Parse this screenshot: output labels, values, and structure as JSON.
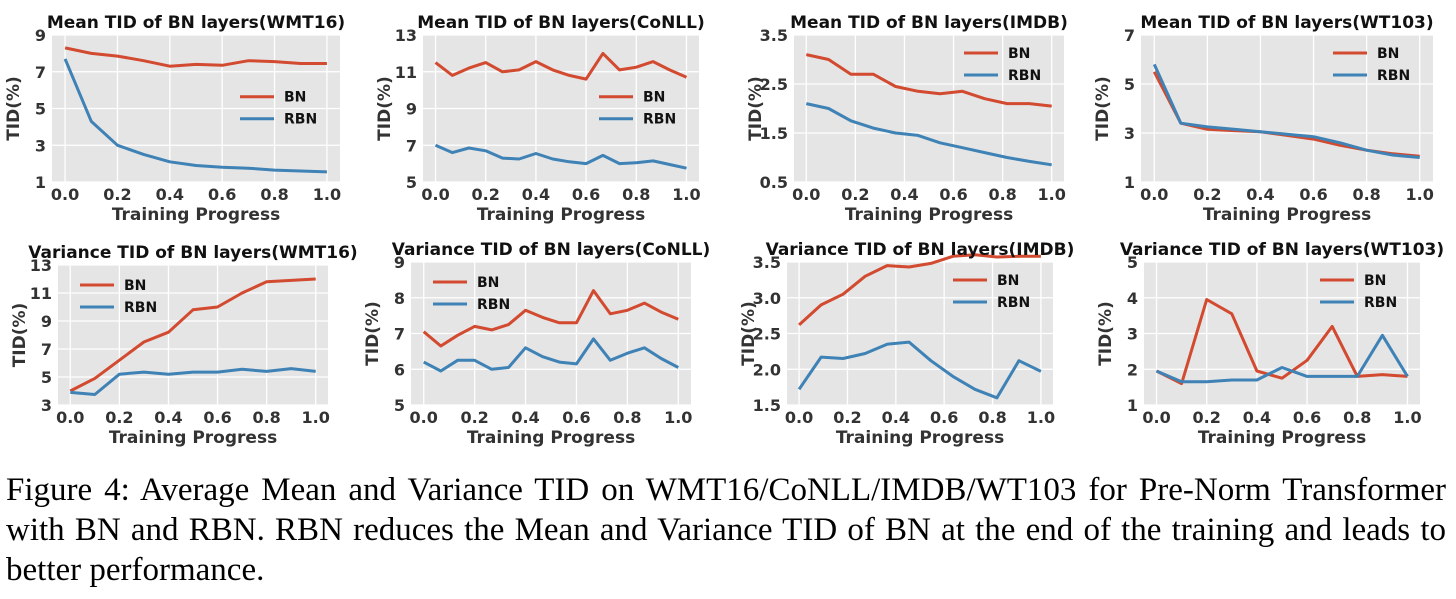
{
  "colors": {
    "BN": "#d24a2f",
    "RBN": "#3f82b5",
    "panel_bg": "#e5e5e5",
    "grid": "#ffffff"
  },
  "caption": "Figure 4: Average Mean and Variance TID on WMT16/CoNLL/IMDB/WT103 for Pre-Norm Transformer with BN and RBN. RBN reduces the Mean and Variance TID of BN at the end of the training and leads to better performance.",
  "chart_data": [
    {
      "type": "line",
      "title": "Mean TID of BN layers(WMT16)",
      "xlabel": "Training Progress",
      "ylabel": "TID(%)",
      "xlim": [
        0,
        1
      ],
      "ylim": [
        1,
        9
      ],
      "xticks": [
        "0.0",
        "0.2",
        "0.4",
        "0.6",
        "0.8",
        "1.0"
      ],
      "yticks": [
        "1",
        "3",
        "5",
        "7",
        "9"
      ],
      "grid": true,
      "legend": "center-right",
      "series": [
        {
          "name": "BN",
          "x": [
            0,
            0.1,
            0.2,
            0.3,
            0.4,
            0.5,
            0.6,
            0.7,
            0.8,
            0.9,
            1.0
          ],
          "y": [
            8.3,
            8.0,
            7.85,
            7.6,
            7.3,
            7.4,
            7.35,
            7.6,
            7.55,
            7.45,
            7.45
          ]
        },
        {
          "name": "RBN",
          "x": [
            0,
            0.1,
            0.2,
            0.3,
            0.4,
            0.5,
            0.6,
            0.7,
            0.8,
            0.9,
            1.0
          ],
          "y": [
            7.7,
            4.3,
            3.0,
            2.5,
            2.1,
            1.9,
            1.8,
            1.75,
            1.65,
            1.6,
            1.55
          ]
        }
      ]
    },
    {
      "type": "line",
      "title": "Mean TID of BN layers(CoNLL)",
      "xlabel": "Training Progress",
      "ylabel": "TID(%)",
      "xlim": [
        0,
        1
      ],
      "ylim": [
        5,
        13
      ],
      "xticks": [
        "0.0",
        "0.2",
        "0.4",
        "0.6",
        "0.8",
        "1.0"
      ],
      "yticks": [
        "5",
        "7",
        "9",
        "11",
        "13"
      ],
      "grid": true,
      "legend": "center-right",
      "series": [
        {
          "name": "BN",
          "x": [
            0,
            0.067,
            0.133,
            0.2,
            0.267,
            0.333,
            0.4,
            0.467,
            0.533,
            0.6,
            0.667,
            0.733,
            0.8,
            0.867,
            0.933,
            1.0
          ],
          "y": [
            11.5,
            10.8,
            11.2,
            11.5,
            11.0,
            11.1,
            11.55,
            11.1,
            10.8,
            10.6,
            12.0,
            11.1,
            11.25,
            11.55,
            11.1,
            10.7
          ]
        },
        {
          "name": "RBN",
          "x": [
            0,
            0.067,
            0.133,
            0.2,
            0.267,
            0.333,
            0.4,
            0.467,
            0.533,
            0.6,
            0.667,
            0.733,
            0.8,
            0.867,
            0.933,
            1.0
          ],
          "y": [
            7.0,
            6.6,
            6.85,
            6.7,
            6.3,
            6.25,
            6.55,
            6.25,
            6.1,
            6.0,
            6.45,
            6.0,
            6.05,
            6.15,
            5.95,
            5.75
          ]
        }
      ]
    },
    {
      "type": "line",
      "title": "Mean TID of BN layers(IMDB)",
      "xlabel": "Training Progress",
      "ylabel": "TID(%)",
      "xlim": [
        0,
        1
      ],
      "ylim": [
        0.5,
        3.5
      ],
      "xticks": [
        "0.0",
        "0.2",
        "0.4",
        "0.6",
        "0.8",
        "1.0"
      ],
      "yticks": [
        "0.5",
        "1.5",
        "2.5",
        "3.5"
      ],
      "grid": true,
      "legend": "top-right",
      "series": [
        {
          "name": "BN",
          "x": [
            0,
            0.091,
            0.182,
            0.273,
            0.364,
            0.455,
            0.545,
            0.636,
            0.727,
            0.818,
            0.909,
            1.0
          ],
          "y": [
            3.1,
            3.0,
            2.7,
            2.7,
            2.45,
            2.35,
            2.3,
            2.35,
            2.2,
            2.1,
            2.1,
            2.05
          ]
        },
        {
          "name": "RBN",
          "x": [
            0,
            0.091,
            0.182,
            0.273,
            0.364,
            0.455,
            0.545,
            0.636,
            0.727,
            0.818,
            0.909,
            1.0
          ],
          "y": [
            2.1,
            2.0,
            1.75,
            1.6,
            1.5,
            1.45,
            1.3,
            1.2,
            1.1,
            1.0,
            0.92,
            0.85
          ]
        }
      ]
    },
    {
      "type": "line",
      "title": "Mean TID of BN layers(WT103)",
      "xlabel": "Training Progress",
      "ylabel": "TID(%)",
      "xlim": [
        0,
        1
      ],
      "ylim": [
        1,
        7
      ],
      "xticks": [
        "0.0",
        "0.2",
        "0.4",
        "0.6",
        "0.8",
        "1.0"
      ],
      "yticks": [
        "1",
        "3",
        "5",
        "7"
      ],
      "grid": true,
      "legend": "top-right",
      "series": [
        {
          "name": "BN",
          "x": [
            0,
            0.1,
            0.2,
            0.3,
            0.4,
            0.5,
            0.6,
            0.7,
            0.8,
            0.9,
            1.0
          ],
          "y": [
            5.5,
            3.4,
            3.15,
            3.1,
            3.05,
            2.9,
            2.75,
            2.5,
            2.3,
            2.15,
            2.05
          ]
        },
        {
          "name": "RBN",
          "x": [
            0,
            0.1,
            0.2,
            0.3,
            0.4,
            0.5,
            0.6,
            0.7,
            0.8,
            0.9,
            1.0
          ],
          "y": [
            5.8,
            3.4,
            3.25,
            3.15,
            3.05,
            2.95,
            2.85,
            2.6,
            2.3,
            2.1,
            2.0
          ]
        }
      ]
    },
    {
      "type": "line",
      "title": "Variance TID of BN layers(WMT16)",
      "xlabel": "Training Progress",
      "ylabel": "TID(%)",
      "xlim": [
        0,
        1
      ],
      "ylim": [
        3,
        13
      ],
      "xticks": [
        "0.0",
        "0.2",
        "0.4",
        "0.6",
        "0.8",
        "1.0"
      ],
      "yticks": [
        "3",
        "5",
        "7",
        "9",
        "11",
        "13"
      ],
      "grid": true,
      "legend": "top-left",
      "series": [
        {
          "name": "BN",
          "x": [
            0,
            0.1,
            0.2,
            0.3,
            0.4,
            0.5,
            0.6,
            0.7,
            0.8,
            0.9,
            1.0
          ],
          "y": [
            4.0,
            4.9,
            6.2,
            7.5,
            8.2,
            9.8,
            10.0,
            11.0,
            11.8,
            11.9,
            12.0
          ]
        },
        {
          "name": "RBN",
          "x": [
            0,
            0.1,
            0.2,
            0.3,
            0.4,
            0.5,
            0.6,
            0.7,
            0.8,
            0.9,
            1.0
          ],
          "y": [
            3.9,
            3.75,
            5.2,
            5.35,
            5.2,
            5.35,
            5.35,
            5.55,
            5.4,
            5.6,
            5.4
          ]
        }
      ]
    },
    {
      "type": "line",
      "title": "Variance TID of BN layers(CoNLL)",
      "xlabel": "Training Progress",
      "ylabel": "TID(%)",
      "xlim": [
        0,
        1
      ],
      "ylim": [
        5,
        9
      ],
      "xticks": [
        "0.0",
        "0.2",
        "0.4",
        "0.6",
        "0.8",
        "1.0"
      ],
      "yticks": [
        "5",
        "6",
        "7",
        "8",
        "9"
      ],
      "grid": true,
      "legend": "top-left",
      "series": [
        {
          "name": "BN",
          "x": [
            0,
            0.067,
            0.133,
            0.2,
            0.267,
            0.333,
            0.4,
            0.467,
            0.533,
            0.6,
            0.667,
            0.733,
            0.8,
            0.867,
            0.933,
            1.0
          ],
          "y": [
            7.05,
            6.65,
            6.95,
            7.2,
            7.1,
            7.25,
            7.65,
            7.45,
            7.3,
            7.3,
            8.2,
            7.55,
            7.65,
            7.85,
            7.6,
            7.4
          ]
        },
        {
          "name": "RBN",
          "x": [
            0,
            0.067,
            0.133,
            0.2,
            0.267,
            0.333,
            0.4,
            0.467,
            0.533,
            0.6,
            0.667,
            0.733,
            0.8,
            0.867,
            0.933,
            1.0
          ],
          "y": [
            6.2,
            5.95,
            6.25,
            6.25,
            6.0,
            6.05,
            6.6,
            6.35,
            6.2,
            6.15,
            6.85,
            6.25,
            6.45,
            6.6,
            6.3,
            6.05
          ]
        }
      ]
    },
    {
      "type": "line",
      "title": "Variance TID of BN layers(IMDB)",
      "xlabel": "Training Progress",
      "ylabel": "TID(%)",
      "xlim": [
        0,
        1
      ],
      "ylim": [
        1.5,
        3.5
      ],
      "xticks": [
        "0.0",
        "0.2",
        "0.4",
        "0.6",
        "0.8",
        "1.0"
      ],
      "yticks": [
        "1.5",
        "2.0",
        "2.5",
        "3.0",
        "3.5"
      ],
      "grid": true,
      "legend": "top-right",
      "series": [
        {
          "name": "BN",
          "x": [
            0,
            0.091,
            0.182,
            0.273,
            0.364,
            0.455,
            0.545,
            0.636,
            0.727,
            0.818,
            0.909,
            1.0
          ],
          "y": [
            2.62,
            2.9,
            3.05,
            3.3,
            3.45,
            3.43,
            3.48,
            3.58,
            3.6,
            3.57,
            3.58,
            3.58
          ]
        },
        {
          "name": "RBN",
          "x": [
            0,
            0.091,
            0.182,
            0.273,
            0.364,
            0.455,
            0.545,
            0.636,
            0.727,
            0.818,
            0.909,
            1.0
          ],
          "y": [
            1.72,
            2.17,
            2.15,
            2.22,
            2.35,
            2.38,
            2.12,
            1.9,
            1.72,
            1.6,
            2.12,
            1.97
          ]
        }
      ]
    },
    {
      "type": "line",
      "title": "Variance TID of BN layers(WT103)",
      "xlabel": "Training Progress",
      "ylabel": "TID(%)",
      "xlim": [
        0,
        1
      ],
      "ylim": [
        1,
        5
      ],
      "xticks": [
        "0.0",
        "0.2",
        "0.4",
        "0.6",
        "0.8",
        "1.0"
      ],
      "yticks": [
        "1",
        "2",
        "3",
        "4",
        "5"
      ],
      "grid": true,
      "legend": "top-right",
      "series": [
        {
          "name": "BN",
          "x": [
            0,
            0.1,
            0.2,
            0.3,
            0.4,
            0.5,
            0.6,
            0.7,
            0.8,
            0.9,
            1.0
          ],
          "y": [
            1.95,
            1.6,
            3.95,
            3.55,
            1.95,
            1.75,
            2.25,
            3.2,
            1.8,
            1.85,
            1.8
          ]
        },
        {
          "name": "RBN",
          "x": [
            0,
            0.1,
            0.2,
            0.3,
            0.4,
            0.5,
            0.6,
            0.7,
            0.8,
            0.9,
            1.0
          ],
          "y": [
            1.95,
            1.65,
            1.65,
            1.7,
            1.7,
            2.05,
            1.8,
            1.8,
            1.8,
            2.95,
            1.8
          ]
        }
      ]
    }
  ]
}
